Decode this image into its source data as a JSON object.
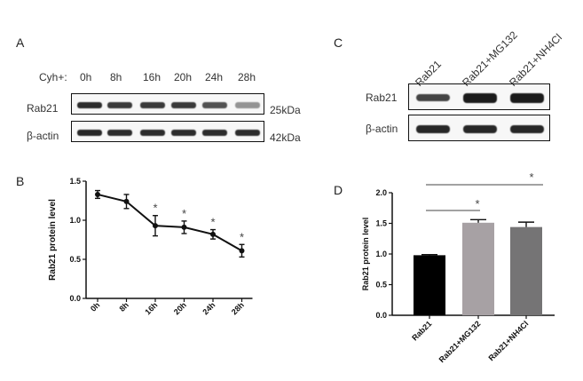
{
  "panel_a": {
    "letter": "A",
    "header_label": "Cyh+:",
    "timepoints": [
      "0h",
      "8h",
      "16h",
      "20h",
      "24h",
      "28h"
    ],
    "rows": [
      {
        "name": "Rab21",
        "kda": "25kDa",
        "intensity": [
          0.88,
          0.82,
          0.82,
          0.82,
          0.72,
          0.45
        ]
      },
      {
        "name": "β-actin",
        "kda": "42kDa",
        "intensity": [
          0.9,
          0.88,
          0.88,
          0.88,
          0.88,
          0.88
        ]
      }
    ]
  },
  "panel_c": {
    "letter": "C",
    "conditions": [
      "Rab21",
      "Rab21+MG132",
      "Rab21+NH4Cl"
    ],
    "rows": [
      {
        "name": "Rab21",
        "intensity": [
          0.78,
          0.95,
          0.95
        ]
      },
      {
        "name": "β-actin",
        "intensity": [
          0.9,
          0.9,
          0.9
        ]
      }
    ]
  },
  "chart_data": [
    {
      "panel": "B",
      "type": "line",
      "ylabel": "Rab21 protein level",
      "categories": [
        "0h",
        "8h",
        "16h",
        "20h",
        "24h",
        "28h"
      ],
      "values": [
        1.33,
        1.24,
        0.93,
        0.91,
        0.82,
        0.61
      ],
      "errors": [
        0.05,
        0.09,
        0.13,
        0.08,
        0.06,
        0.08
      ],
      "significance": [
        "",
        "",
        "*",
        "*",
        "*",
        "*"
      ],
      "ylim": [
        0,
        1.5
      ],
      "yticks": [
        "0.0",
        "0.5",
        "1.0",
        "1.5"
      ],
      "colors": {
        "line": "#111111",
        "point": "#111111"
      }
    },
    {
      "panel": "D",
      "type": "bar",
      "ylabel": "Rab21 protein level",
      "categories": [
        "Rab21",
        "Rab21+MG132",
        "Rab21+NH4Cl"
      ],
      "values": [
        0.98,
        1.51,
        1.44
      ],
      "errors": [
        0.01,
        0.05,
        0.08
      ],
      "significance_marks": [
        "*",
        "*"
      ],
      "ylim": [
        0,
        2.0
      ],
      "yticks": [
        "0.0",
        "0.5",
        "1.0",
        "1.5",
        "2.0"
      ],
      "colors": {
        "bars": [
          "#000000",
          "#a7a1a4",
          "#757475"
        ]
      }
    }
  ]
}
